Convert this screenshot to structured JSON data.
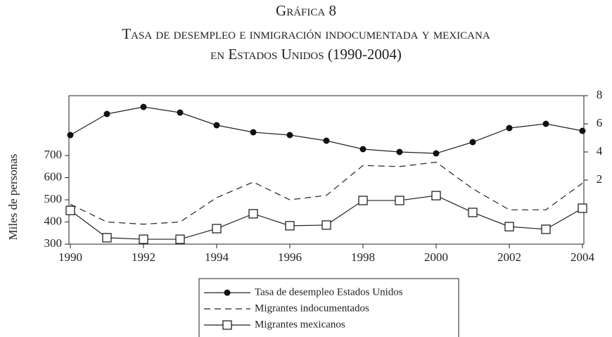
{
  "chart_data": {
    "type": "line",
    "title": "Gráfica 8",
    "subtitle": [
      "Tasa de desempleo e inmigración indocumentada y mexicana",
      "en Estados Unidos (1990-2004)"
    ],
    "y_label": "Miles de personas",
    "x": [
      1990,
      1991,
      1992,
      1993,
      1994,
      1995,
      1996,
      1997,
      1998,
      1999,
      2000,
      2001,
      2002,
      2003,
      2004
    ],
    "xlim": [
      1990,
      2004
    ],
    "xticks": [
      1990,
      1992,
      1994,
      1996,
      1998,
      2000,
      2002,
      2004
    ],
    "ylim": [
      300,
      970
    ],
    "yticks": [
      300,
      400,
      500,
      600,
      700
    ],
    "y2lim": [
      -2.55,
      8
    ],
    "y2ticks": [
      2,
      4,
      6,
      8
    ],
    "series": [
      {
        "name": "Tasa de desempleo Estados Unidos",
        "color": "#222222",
        "axis": "y2",
        "marker": "circle",
        "values": [
          5.2,
          6.7,
          7.2,
          6.8,
          5.9,
          5.4,
          5.2,
          4.8,
          4.2,
          4.0,
          3.9,
          4.7,
          5.7,
          6.0,
          5.5
        ]
      },
      {
        "name": "Migrantes indocumentados",
        "color": "#222222",
        "dash": true,
        "values": [
          480,
          400,
          390,
          400,
          510,
          580,
          500,
          520,
          655,
          650,
          670,
          550,
          455,
          455,
          575
        ]
      },
      {
        "name": "Migrantes mexicanos",
        "color": "#222222",
        "marker": "square",
        "values": [
          452,
          329,
          322,
          322,
          370,
          437,
          383,
          386,
          497,
          497,
          519,
          443,
          379,
          367,
          462
        ]
      }
    ]
  }
}
